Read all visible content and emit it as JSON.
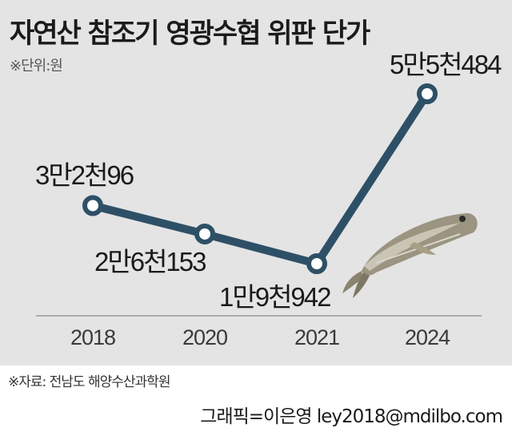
{
  "header": {
    "title": "자연산 참조기 영광수협 위판 단가",
    "unit_note": "※단위:원"
  },
  "chart_data": {
    "type": "line",
    "title": "자연산 참조기 영광수협 위판 단가",
    "categories": [
      "2018",
      "2020",
      "2021",
      "2024"
    ],
    "series": [
      {
        "values": [
          32096,
          26153,
          19942,
          55484
        ],
        "labels": [
          "3만2천96",
          "2만6천153",
          "1만9천942",
          "5만5천484"
        ]
      }
    ],
    "xlabel": "",
    "ylabel": "",
    "grid": false,
    "line_color": "#2e5067",
    "marker_fill": "#ffffff"
  },
  "image": {
    "icon": "dried-fish-icon"
  },
  "footer": {
    "source": "※자료: 전남도 해양수산과학원",
    "credit": "그래픽=이은영 ley2018@mdilbo.com"
  }
}
